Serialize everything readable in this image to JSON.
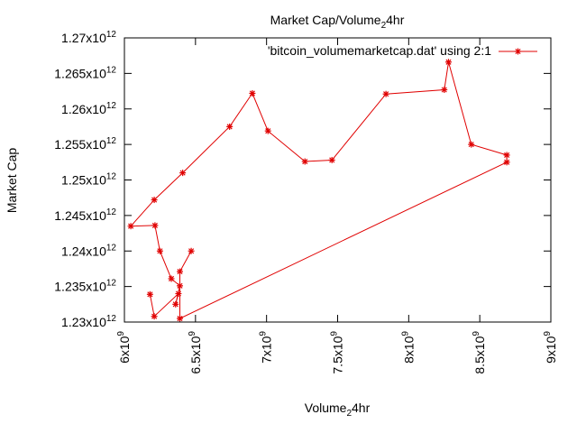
{
  "chart_data": {
    "type": "line",
    "title": "Market Cap/Volume",
    "title_sub": "2",
    "title_after": "4hr",
    "xlabel": "Volume",
    "xlabel_sub": "2",
    "xlabel_after": "4hr",
    "ylabel": "Market Cap",
    "xlim": [
      6000000000,
      9000000000
    ],
    "ylim": [
      1230000000000,
      1270000000000
    ],
    "x_ticks": [
      6000000000,
      6500000000,
      7000000000,
      7500000000,
      8000000000,
      8500000000,
      9000000000
    ],
    "x_tick_labels": [
      {
        "mant": "6x10",
        "exp": "9"
      },
      {
        "mant": "6.5x10",
        "exp": "9"
      },
      {
        "mant": "7x10",
        "exp": "9"
      },
      {
        "mant": "7.5x10",
        "exp": "9"
      },
      {
        "mant": "8x10",
        "exp": "9"
      },
      {
        "mant": "8.5x10",
        "exp": "9"
      },
      {
        "mant": "9x10",
        "exp": "9"
      }
    ],
    "y_ticks": [
      1230000000000,
      1235000000000,
      1240000000000,
      1245000000000,
      1250000000000,
      1255000000000,
      1260000000000,
      1265000000000,
      1270000000000
    ],
    "y_tick_labels": [
      {
        "mant": "1.23x10",
        "exp": "12"
      },
      {
        "mant": "1.235x10",
        "exp": "12"
      },
      {
        "mant": "1.24x10",
        "exp": "12"
      },
      {
        "mant": "1.245x10",
        "exp": "12"
      },
      {
        "mant": "1.25x10",
        "exp": "12"
      },
      {
        "mant": "1.255x10",
        "exp": "12"
      },
      {
        "mant": "1.26x10",
        "exp": "12"
      },
      {
        "mant": "1.265x10",
        "exp": "12"
      },
      {
        "mant": "1.27x10",
        "exp": "12"
      }
    ],
    "grid": false,
    "legend_position": "top-right",
    "series": [
      {
        "name": "'bitcoin_volumemarketcap.dat' using 2:1",
        "color": "#e00000",
        "marker": "star",
        "x": [
          6180000000,
          6210000000,
          6380000000,
          6360000000,
          6390000000,
          6330000000,
          6250000000,
          6215000000,
          6045000000,
          6210000000,
          6410000000,
          6740000000,
          6900000000,
          7010000000,
          7270000000,
          7460000000,
          7840000000,
          8250000000,
          8280000000,
          8440000000,
          8690000000,
          8690000000,
          6390000000,
          6390000000,
          6470000000
        ],
        "y": [
          1233900000000,
          1230800000000,
          1234000000000,
          1232500000000,
          1235100000000,
          1236100000000,
          1240000000000,
          1243600000000,
          1243500000000,
          1247200000000,
          1251000000000,
          1257500000000,
          1262200000000,
          1256900000000,
          1252600000000,
          1252800000000,
          1262100000000,
          1262700000000,
          1266600000000,
          1255000000000,
          1253500000000,
          1252500000000,
          1230500000000,
          1237100000000,
          1240000000000
        ]
      }
    ]
  }
}
